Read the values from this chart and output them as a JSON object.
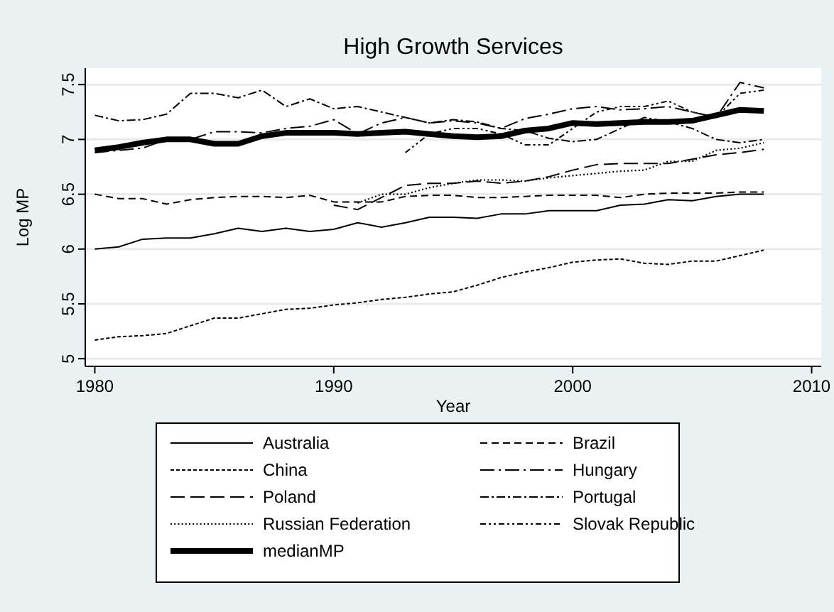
{
  "chart_data": {
    "type": "line",
    "title": "High Growth Services",
    "xlabel": "Year",
    "ylabel": "Log MP",
    "x": [
      1980,
      1981,
      1982,
      1983,
      1984,
      1985,
      1986,
      1987,
      1988,
      1989,
      1990,
      1991,
      1992,
      1993,
      1994,
      1995,
      1996,
      1997,
      1998,
      1999,
      2000,
      2001,
      2002,
      2003,
      2004,
      2005,
      2006,
      2007,
      2008
    ],
    "xlim": [
      1979.6,
      2010.4
    ],
    "xticks": [
      1980,
      1990,
      2000,
      2010
    ],
    "ylim": [
      4.93,
      7.65
    ],
    "yticks": [
      5,
      5.5,
      6,
      6.5,
      7,
      7.5
    ],
    "grid": "y",
    "legend": "bottom",
    "series": [
      {
        "name": "Australia",
        "color": "#000000",
        "line_style": "solid",
        "values": [
          6.0,
          6.02,
          6.09,
          6.1,
          6.1,
          6.14,
          6.19,
          6.16,
          6.19,
          6.16,
          6.18,
          6.24,
          6.2,
          6.24,
          6.29,
          6.29,
          6.28,
          6.32,
          6.32,
          6.35,
          6.35,
          6.35,
          6.4,
          6.41,
          6.45,
          6.44,
          6.48,
          6.5,
          6.5
        ]
      },
      {
        "name": "Brazil",
        "color": "#000000",
        "line_style": "dashed",
        "values": [
          6.5,
          6.46,
          6.46,
          6.41,
          6.45,
          6.47,
          6.48,
          6.48,
          6.47,
          6.49,
          6.43,
          6.43,
          6.43,
          6.48,
          6.49,
          6.49,
          6.47,
          6.47,
          6.48,
          6.49,
          6.49,
          6.49,
          6.47,
          6.5,
          6.51,
          6.51,
          6.51,
          6.52,
          6.52
        ]
      },
      {
        "name": "China",
        "color": "#000000",
        "line_style": "dashed",
        "values": [
          5.17,
          5.2,
          5.21,
          5.23,
          5.3,
          5.37,
          5.37,
          5.41,
          5.45,
          5.46,
          5.49,
          5.51,
          5.54,
          5.56,
          5.59,
          5.61,
          5.67,
          5.74,
          5.79,
          5.83,
          5.88,
          5.9,
          5.91,
          5.87,
          5.86,
          5.89,
          5.89,
          5.94,
          5.99
        ]
      },
      {
        "name": "Hungary",
        "color": "#000000",
        "line_style": "dashed",
        "values": [
          6.88,
          6.9,
          6.92,
          7.0,
          7.0,
          7.07,
          7.07,
          7.06,
          7.1,
          7.12,
          7.18,
          7.05,
          7.15,
          7.2,
          7.15,
          7.17,
          7.15,
          7.1,
          7.19,
          7.23,
          7.28,
          7.3,
          7.27,
          7.28,
          7.3,
          7.25,
          7.2,
          7.52,
          7.47
        ]
      },
      {
        "name": "Poland",
        "color": "#000000",
        "line_style": "dashed",
        "values": [
          null,
          null,
          null,
          null,
          null,
          null,
          null,
          null,
          null,
          null,
          6.4,
          6.36,
          6.47,
          6.58,
          6.6,
          6.6,
          6.62,
          6.6,
          6.62,
          6.66,
          6.72,
          6.77,
          6.78,
          6.78,
          6.78,
          6.82,
          6.86,
          6.88,
          6.91
        ]
      },
      {
        "name": "Portugal",
        "color": "#000000",
        "line_style": "dashed",
        "values": [
          7.22,
          7.17,
          7.18,
          7.23,
          7.42,
          7.42,
          7.38,
          7.45,
          7.3,
          7.37,
          7.28,
          7.3,
          7.25,
          7.2,
          7.15,
          7.18,
          7.16,
          7.1,
          7.08,
          7.01,
          6.98,
          7.0,
          7.1,
          7.2,
          7.16,
          7.1,
          7.0,
          6.97,
          7.0
        ]
      },
      {
        "name": "Russian Federation",
        "color": "#000000",
        "line_style": "dotted",
        "values": [
          null,
          null,
          null,
          null,
          null,
          null,
          null,
          null,
          null,
          null,
          null,
          6.42,
          6.5,
          6.5,
          6.56,
          6.6,
          6.63,
          6.63,
          6.62,
          6.65,
          6.67,
          6.69,
          6.71,
          6.72,
          6.8,
          6.8,
          6.9,
          6.92,
          6.97
        ]
      },
      {
        "name": "Slovak Republic",
        "color": "#000000",
        "line_style": "dashed",
        "values": [
          null,
          null,
          null,
          null,
          null,
          null,
          null,
          null,
          null,
          null,
          null,
          null,
          null,
          6.88,
          7.05,
          7.1,
          7.1,
          7.05,
          6.95,
          6.95,
          7.1,
          7.25,
          7.3,
          7.3,
          7.35,
          7.25,
          7.2,
          7.42,
          7.45
        ]
      },
      {
        "name": "medianMP",
        "color": "#000000",
        "line_style": "solid",
        "values": [
          6.9,
          6.93,
          6.97,
          7.0,
          7.0,
          6.96,
          6.96,
          7.03,
          7.06,
          7.06,
          7.06,
          7.05,
          7.06,
          7.07,
          7.05,
          7.03,
          7.02,
          7.03,
          7.08,
          7.1,
          7.15,
          7.14,
          7.15,
          7.16,
          7.16,
          7.17,
          7.22,
          7.27,
          7.26
        ]
      }
    ]
  }
}
